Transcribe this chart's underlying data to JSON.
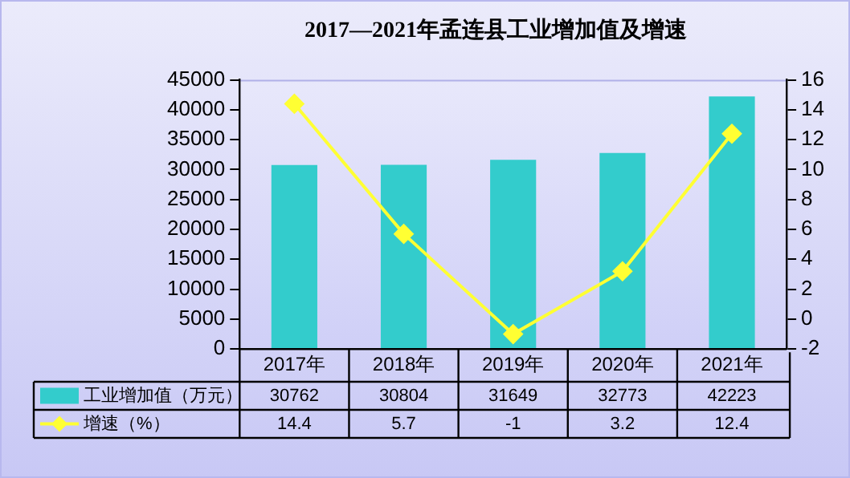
{
  "chart_data": {
    "type": "bar",
    "title": "2017—2021年孟连县工业增加值及增速",
    "categories": [
      "2017年",
      "2018年",
      "2019年",
      "2020年",
      "2021年"
    ],
    "series": [
      {
        "name": "工业增加值（万元）",
        "color": "#33cccc",
        "values": [
          30762,
          30804,
          31649,
          32773,
          42223
        ]
      },
      {
        "name": "增速（%）",
        "type": "line",
        "axis": "y2",
        "color": "#ffff33",
        "values": [
          14.4,
          5.7,
          -1,
          3.2,
          12.4
        ]
      }
    ],
    "ylim": [
      0,
      45000
    ],
    "yticks": [
      0,
      5000,
      10000,
      15000,
      20000,
      25000,
      30000,
      35000,
      40000,
      45000
    ],
    "y2lim": [
      -2,
      16
    ],
    "y2ticks": [
      -2,
      0,
      2,
      4,
      6,
      8,
      10,
      12,
      14,
      16
    ],
    "grid": false,
    "legend": "bottom",
    "marker": "diamond",
    "data_labels": true
  }
}
